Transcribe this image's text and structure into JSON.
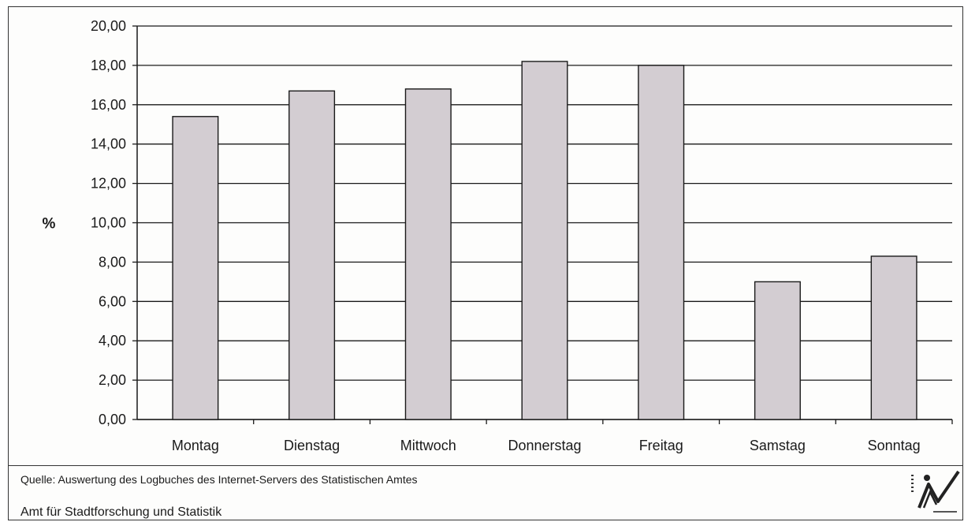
{
  "chart_data": {
    "type": "bar",
    "categories": [
      "Montag",
      "Dienstag",
      "Mittwoch",
      "Donnerstag",
      "Freitag",
      "Samstag",
      "Sonntag"
    ],
    "values": [
      15.4,
      16.7,
      16.8,
      18.2,
      18.0,
      7.0,
      8.3
    ],
    "ylabel": "%",
    "xlabel": "",
    "ylim": [
      0,
      20
    ],
    "yticks": [
      "0,00",
      "2,00",
      "4,00",
      "6,00",
      "8,00",
      "10,00",
      "12,00",
      "14,00",
      "16,00",
      "18,00",
      "20,00"
    ],
    "grid": true,
    "bar_color": "#d3cdd2",
    "bar_stroke": "#1a1a1a"
  },
  "footer": {
    "source": "Quelle: Auswertung des Logbuches des Internet-Servers des Statistischen Amtes",
    "organization": "Amt für Stadtforschung und Statistik"
  },
  "logo": {
    "icon": "statistics-office-logo"
  }
}
